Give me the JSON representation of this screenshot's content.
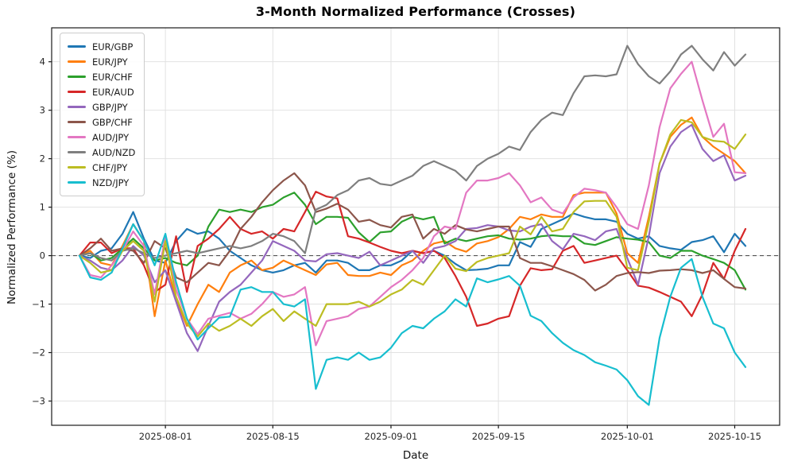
{
  "chart_data": {
    "type": "line",
    "title": "3-Month Normalized Performance (Crosses)",
    "xlabel": "Date",
    "ylabel": "Normalized Performance (%)",
    "grid": true,
    "zero_line_dashed": true,
    "legend_position": "upper left",
    "ylim": [
      -3.5,
      4.7
    ],
    "y_ticks": [
      {
        "label": "4",
        "value": 4
      },
      {
        "label": "3",
        "value": 3
      },
      {
        "label": "2",
        "value": 2
      },
      {
        "label": "1",
        "value": 1
      },
      {
        "label": "0",
        "value": 0
      },
      {
        "label": "−1",
        "value": -1
      },
      {
        "label": "−2",
        "value": -2
      },
      {
        "label": "−3",
        "value": -3
      }
    ],
    "x_ticks": [
      {
        "label": "2025-08-01",
        "day_index": 8
      },
      {
        "label": "2025-08-15",
        "day_index": 18
      },
      {
        "label": "2025-09-01",
        "day_index": 29
      },
      {
        "label": "2025-09-15",
        "day_index": 39
      },
      {
        "label": "2025-10-01",
        "day_index": 51
      },
      {
        "label": "2025-10-15",
        "day_index": 61
      }
    ],
    "x_dates": [
      "2025-07-22",
      "2025-07-23",
      "2025-07-24",
      "2025-07-25",
      "2025-07-28",
      "2025-07-29",
      "2025-07-30",
      "2025-07-31",
      "2025-08-01",
      "2025-08-04",
      "2025-08-05",
      "2025-08-06",
      "2025-08-07",
      "2025-08-08",
      "2025-08-11",
      "2025-08-12",
      "2025-08-13",
      "2025-08-14",
      "2025-08-15",
      "2025-08-18",
      "2025-08-19",
      "2025-08-20",
      "2025-08-21",
      "2025-08-22",
      "2025-08-25",
      "2025-08-26",
      "2025-08-27",
      "2025-08-28",
      "2025-08-29",
      "2025-09-01",
      "2025-09-02",
      "2025-09-03",
      "2025-09-04",
      "2025-09-05",
      "2025-09-08",
      "2025-09-09",
      "2025-09-10",
      "2025-09-11",
      "2025-09-12",
      "2025-09-15",
      "2025-09-16",
      "2025-09-17",
      "2025-09-18",
      "2025-09-19",
      "2025-09-22",
      "2025-09-23",
      "2025-09-24",
      "2025-09-25",
      "2025-09-26",
      "2025-09-29",
      "2025-09-30",
      "2025-10-01",
      "2025-10-02",
      "2025-10-03",
      "2025-10-06",
      "2025-10-07",
      "2025-10-08",
      "2025-10-09",
      "2025-10-10",
      "2025-10-13",
      "2025-10-14",
      "2025-10-15",
      "2025-10-16"
    ],
    "series": [
      {
        "name": "EUR/GBP",
        "color": "#1f77b4",
        "values": [
          0.0,
          -0.05,
          0.1,
          0.15,
          0.45,
          0.9,
          0.35,
          -0.1,
          -0.15,
          0.3,
          0.55,
          0.45,
          0.5,
          0.35,
          0.1,
          -0.05,
          -0.2,
          -0.3,
          -0.35,
          -0.3,
          -0.2,
          -0.15,
          -0.35,
          -0.1,
          -0.1,
          -0.15,
          -0.3,
          -0.3,
          -0.2,
          -0.2,
          -0.1,
          0.1,
          0.05,
          0.1,
          0.0,
          -0.17,
          -0.3,
          -0.29,
          -0.27,
          -0.2,
          -0.2,
          0.28,
          0.18,
          0.55,
          0.65,
          0.75,
          0.87,
          0.8,
          0.75,
          0.75,
          0.7,
          0.45,
          0.35,
          0.4,
          0.2,
          0.15,
          0.12,
          0.28,
          0.32,
          0.4,
          0.07,
          0.45,
          0.2
        ]
      },
      {
        "name": "EUR/JPY",
        "color": "#ff7f0e",
        "values": [
          0.0,
          0.1,
          -0.15,
          -0.2,
          0.2,
          0.65,
          0.3,
          -1.25,
          -0.1,
          -0.9,
          -1.45,
          -1.0,
          -0.6,
          -0.75,
          -0.35,
          -0.2,
          -0.1,
          -0.3,
          -0.25,
          -0.1,
          -0.2,
          -0.3,
          -0.4,
          -0.18,
          -0.15,
          -0.4,
          -0.42,
          -0.42,
          -0.35,
          -0.4,
          -0.2,
          -0.1,
          0.1,
          0.25,
          0.3,
          0.15,
          0.08,
          0.25,
          0.3,
          0.38,
          0.55,
          0.8,
          0.75,
          0.85,
          0.8,
          0.8,
          1.25,
          1.3,
          1.3,
          1.3,
          0.87,
          0.05,
          -0.15,
          0.8,
          1.9,
          2.45,
          2.7,
          2.85,
          2.45,
          2.25,
          2.1,
          1.95,
          1.7
        ]
      },
      {
        "name": "EUR/CHF",
        "color": "#2ca02c",
        "values": [
          0.0,
          0.05,
          -0.1,
          -0.05,
          0.15,
          0.35,
          0.15,
          -0.1,
          -0.05,
          -0.15,
          -0.2,
          0.0,
          0.6,
          0.95,
          0.9,
          0.95,
          0.9,
          1.0,
          1.05,
          1.2,
          1.3,
          1.05,
          0.65,
          0.8,
          0.8,
          0.78,
          0.48,
          0.28,
          0.48,
          0.5,
          0.7,
          0.8,
          0.75,
          0.8,
          0.25,
          0.35,
          0.3,
          0.35,
          0.4,
          0.42,
          0.35,
          0.33,
          0.35,
          0.4,
          0.42,
          0.4,
          0.4,
          0.25,
          0.22,
          0.3,
          0.38,
          0.35,
          0.33,
          0.28,
          0.0,
          -0.05,
          0.1,
          0.1,
          0.0,
          -0.07,
          -0.15,
          -0.3,
          -0.7
        ]
      },
      {
        "name": "EUR/AUD",
        "color": "#d62728",
        "values": [
          0.0,
          0.27,
          0.27,
          0.05,
          0.15,
          0.15,
          -0.2,
          -0.75,
          -0.6,
          0.4,
          -0.75,
          0.2,
          0.35,
          0.55,
          0.8,
          0.55,
          0.45,
          0.5,
          0.35,
          0.55,
          0.5,
          0.9,
          1.32,
          1.22,
          1.18,
          0.4,
          0.35,
          0.27,
          0.18,
          0.1,
          0.05,
          0.1,
          0.05,
          0.1,
          -0.05,
          -0.42,
          -0.85,
          -1.45,
          -1.4,
          -1.3,
          -1.25,
          -0.62,
          -0.26,
          -0.3,
          -0.28,
          0.1,
          0.2,
          -0.15,
          -0.1,
          -0.05,
          0.0,
          -0.3,
          -0.62,
          -0.66,
          -0.75,
          -0.85,
          -0.95,
          -1.25,
          -0.8,
          -0.15,
          -0.48,
          0.1,
          0.55
        ]
      },
      {
        "name": "GBP/JPY",
        "color": "#9467bd",
        "values": [
          0.0,
          -0.1,
          -0.25,
          -0.3,
          -0.1,
          0.2,
          0.0,
          -0.55,
          -0.3,
          -0.95,
          -1.6,
          -1.97,
          -1.45,
          -0.95,
          -0.75,
          -0.6,
          -0.35,
          -0.1,
          0.3,
          0.2,
          0.1,
          -0.1,
          -0.12,
          0.03,
          0.05,
          0.0,
          -0.05,
          0.08,
          -0.2,
          -0.1,
          0.0,
          0.1,
          -0.15,
          0.15,
          0.2,
          0.3,
          0.55,
          0.57,
          0.63,
          0.6,
          0.52,
          0.5,
          0.6,
          0.65,
          0.3,
          0.13,
          0.45,
          0.4,
          0.32,
          0.5,
          0.55,
          -0.05,
          -0.6,
          0.4,
          1.7,
          2.25,
          2.55,
          2.7,
          2.2,
          1.95,
          2.07,
          1.55,
          1.65
        ]
      },
      {
        "name": "GBP/CHF",
        "color": "#8c564b",
        "values": [
          0.0,
          0.15,
          0.35,
          0.1,
          0.15,
          0.1,
          -0.15,
          0.3,
          0.15,
          -0.45,
          -0.55,
          -0.35,
          -0.15,
          -0.2,
          0.1,
          0.55,
          0.8,
          1.1,
          1.35,
          1.55,
          1.7,
          1.45,
          0.9,
          0.97,
          1.07,
          0.95,
          0.7,
          0.74,
          0.63,
          0.58,
          0.8,
          0.85,
          0.35,
          0.55,
          0.45,
          0.63,
          0.54,
          0.5,
          0.55,
          0.6,
          0.6,
          -0.05,
          -0.15,
          -0.15,
          -0.22,
          -0.3,
          -0.38,
          -0.5,
          -0.72,
          -0.6,
          -0.42,
          -0.36,
          -0.34,
          -0.36,
          -0.31,
          -0.3,
          -0.28,
          -0.3,
          -0.36,
          -0.3,
          -0.48,
          -0.65,
          -0.68
        ]
      },
      {
        "name": "AUD/JPY",
        "color": "#e377c2",
        "values": [
          0.0,
          -0.4,
          -0.45,
          -0.2,
          0.1,
          0.5,
          0.2,
          -0.8,
          0.4,
          -0.7,
          -1.3,
          -1.62,
          -1.3,
          -1.24,
          -1.18,
          -1.3,
          -1.2,
          -1.0,
          -0.75,
          -0.85,
          -0.8,
          -0.65,
          -1.85,
          -1.35,
          -1.3,
          -1.25,
          -1.1,
          -1.05,
          -0.85,
          -0.65,
          -0.5,
          -0.3,
          -0.05,
          0.4,
          0.6,
          0.55,
          1.3,
          1.55,
          1.55,
          1.6,
          1.7,
          1.45,
          1.1,
          1.2,
          0.95,
          0.87,
          1.2,
          1.38,
          1.35,
          1.3,
          1.0,
          0.65,
          0.55,
          1.45,
          2.65,
          3.45,
          3.75,
          4.0,
          3.2,
          2.45,
          2.72,
          1.72,
          1.7
        ]
      },
      {
        "name": "AUD/NZD",
        "color": "#7f7f7f",
        "values": [
          0.0,
          0.05,
          -0.05,
          -0.1,
          0.1,
          0.15,
          0.05,
          -0.05,
          0.0,
          0.05,
          0.1,
          0.05,
          0.1,
          0.15,
          0.2,
          0.15,
          0.2,
          0.3,
          0.45,
          0.4,
          0.3,
          0.05,
          0.95,
          1.05,
          1.25,
          1.35,
          1.55,
          1.6,
          1.48,
          1.45,
          1.55,
          1.65,
          1.85,
          1.95,
          1.85,
          1.75,
          1.55,
          1.85,
          2.0,
          2.1,
          2.25,
          2.18,
          2.55,
          2.8,
          2.95,
          2.9,
          3.35,
          3.7,
          3.72,
          3.7,
          3.74,
          4.33,
          3.95,
          3.7,
          3.55,
          3.8,
          4.15,
          4.33,
          4.05,
          3.82,
          4.2,
          3.92,
          4.15
        ]
      },
      {
        "name": "CHF/JPY",
        "color": "#bcbd22",
        "values": [
          0.0,
          -0.15,
          -0.35,
          -0.3,
          0.1,
          0.3,
          0.1,
          -0.95,
          0.3,
          -0.85,
          -1.4,
          -1.67,
          -1.4,
          -1.55,
          -1.45,
          -1.3,
          -1.45,
          -1.25,
          -1.1,
          -1.35,
          -1.15,
          -1.3,
          -1.45,
          -1.0,
          -1.0,
          -1.0,
          -0.95,
          -1.05,
          -0.95,
          -0.8,
          -0.7,
          -0.5,
          -0.6,
          -0.3,
          0.0,
          -0.27,
          -0.32,
          -0.13,
          -0.05,
          0.0,
          0.05,
          0.6,
          0.44,
          0.8,
          0.5,
          0.55,
          0.9,
          1.12,
          1.13,
          1.13,
          0.8,
          -0.25,
          -0.3,
          0.7,
          1.9,
          2.5,
          2.8,
          2.75,
          2.45,
          2.37,
          2.35,
          2.2,
          2.5
        ]
      },
      {
        "name": "NZD/JPY",
        "color": "#17becf",
        "values": [
          0.0,
          -0.45,
          -0.5,
          -0.35,
          0.15,
          0.65,
          0.3,
          -0.2,
          0.45,
          -0.55,
          -1.3,
          -1.73,
          -1.5,
          -1.28,
          -1.26,
          -0.7,
          -0.65,
          -0.75,
          -0.75,
          -1.0,
          -1.05,
          -0.9,
          -2.75,
          -2.15,
          -2.1,
          -2.15,
          -2.0,
          -2.15,
          -2.1,
          -1.9,
          -1.6,
          -1.45,
          -1.5,
          -1.3,
          -1.15,
          -0.9,
          -1.05,
          -0.47,
          -0.55,
          -0.49,
          -0.42,
          -0.62,
          -1.24,
          -1.35,
          -1.6,
          -1.8,
          -1.95,
          -2.05,
          -2.2,
          -2.27,
          -2.35,
          -2.57,
          -2.9,
          -3.08,
          -1.7,
          -0.85,
          -0.25,
          -0.07,
          -0.85,
          -1.4,
          -1.5,
          -2.0,
          -2.3
        ]
      }
    ]
  }
}
